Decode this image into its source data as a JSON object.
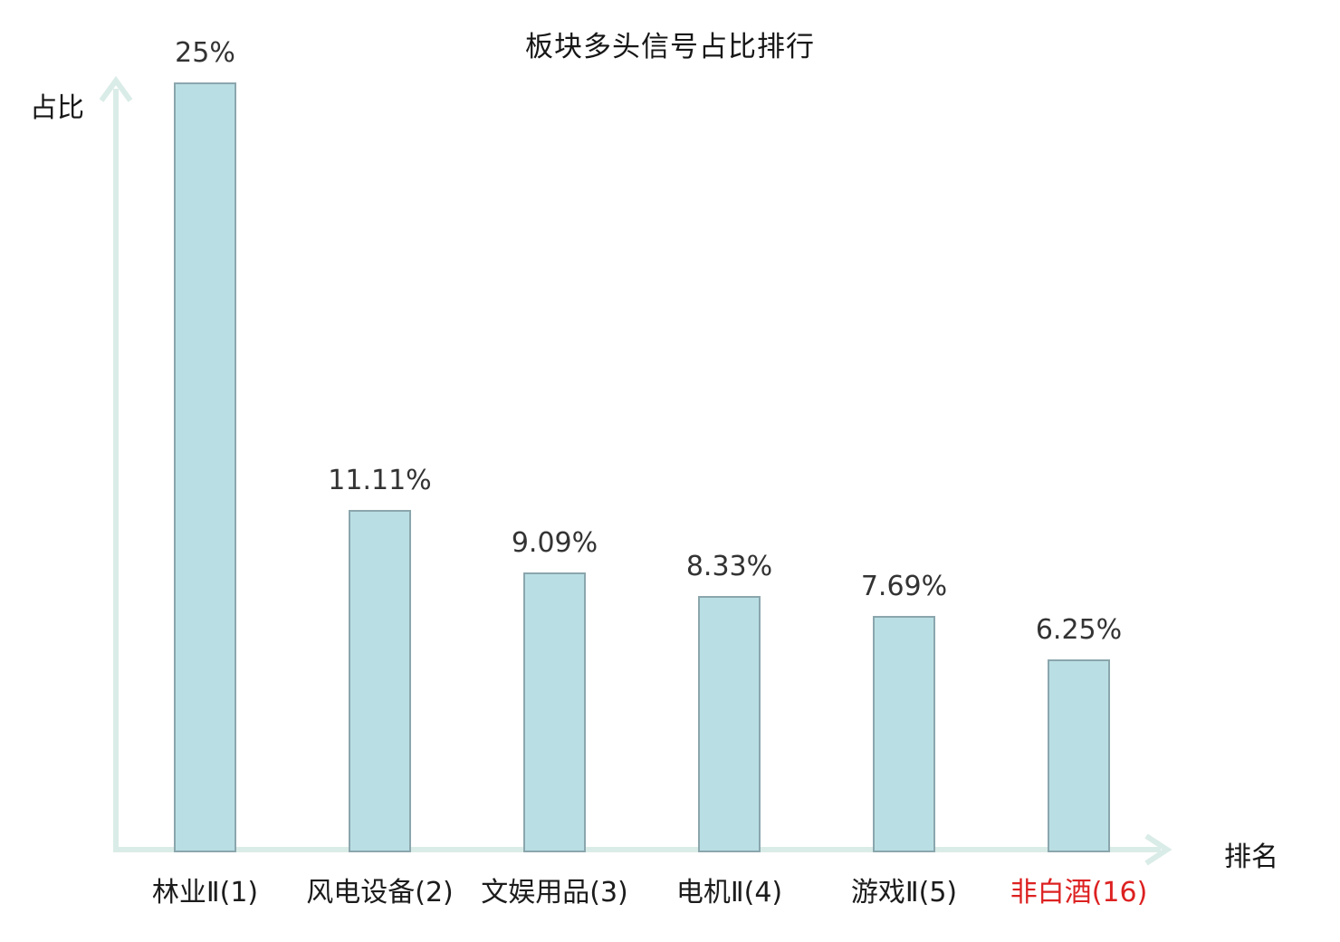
{
  "chart_data": {
    "type": "bar",
    "title": "板块多头信号占比排行",
    "xlabel": "排名",
    "ylabel": "占比",
    "categories": [
      "林业Ⅱ(1)",
      "风电设备(2)",
      "文娱用品(3)",
      "电机Ⅱ(4)",
      "游戏Ⅱ(5)",
      "非白酒(16)"
    ],
    "values": [
      25,
      11.11,
      9.09,
      8.33,
      7.69,
      6.25
    ],
    "value_labels": [
      "25%",
      "11.11%",
      "9.09%",
      "8.33%",
      "7.69%",
      "6.25%"
    ],
    "highlight_index": 5,
    "highlight_color": "#dd2121",
    "bar_fill": "#b9dfe4",
    "bar_border": "#8ba6ad",
    "axis_color": "#daece7",
    "title_color": "#161616",
    "value_label_color": "#333333",
    "category_label_color": "#1c1c1c",
    "ylim": [
      0,
      25
    ],
    "grid": false,
    "legend": "none"
  }
}
